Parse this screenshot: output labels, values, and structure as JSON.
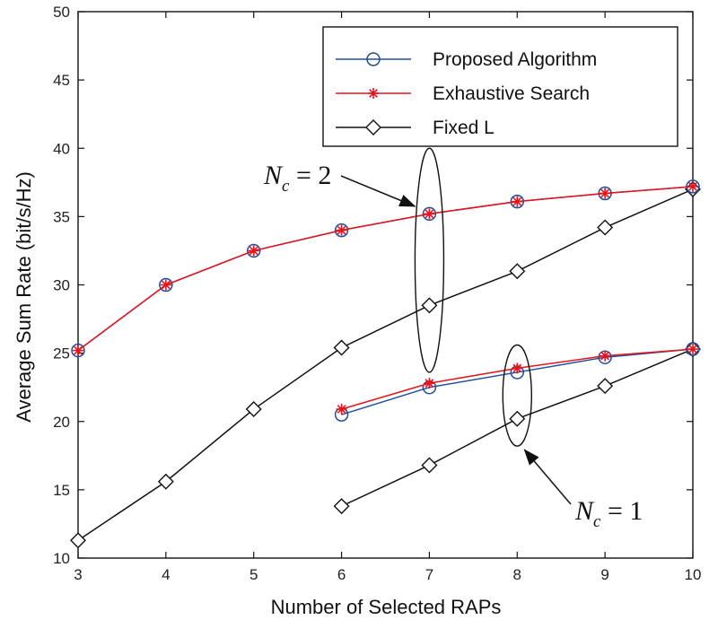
{
  "chart_data": {
    "type": "line",
    "xlabel": "Number of Selected RAPs",
    "ylabel": "Average Sum Rate (bit/s/Hz)",
    "xlim": [
      3,
      10
    ],
    "ylim": [
      10,
      50
    ],
    "xticks": [
      3,
      4,
      5,
      6,
      7,
      8,
      9,
      10
    ],
    "yticks": [
      10,
      15,
      20,
      25,
      30,
      35,
      40,
      45,
      50
    ],
    "grid": false,
    "legend_position": "top-right",
    "series": [
      {
        "name": "Proposed Algorithm",
        "color": "#1f4e9e",
        "marker": "circle",
        "groups": [
          {
            "x": [
              3,
              4,
              5,
              6,
              7,
              8,
              9,
              10
            ],
            "y": [
              25.2,
              30.0,
              32.5,
              34.0,
              35.2,
              36.1,
              36.7,
              37.2
            ]
          },
          {
            "x": [
              6,
              7,
              8,
              9,
              10
            ],
            "y": [
              20.5,
              22.5,
              23.6,
              24.7,
              25.3
            ]
          }
        ]
      },
      {
        "name": "Exhaustive Search",
        "color": "#e8141b",
        "marker": "asterisk",
        "groups": [
          {
            "x": [
              3,
              4,
              5,
              6,
              7,
              8,
              9,
              10
            ],
            "y": [
              25.2,
              30.0,
              32.5,
              34.0,
              35.2,
              36.1,
              36.7,
              37.2
            ]
          },
          {
            "x": [
              6,
              7,
              8,
              9,
              10
            ],
            "y": [
              20.9,
              22.8,
              23.9,
              24.8,
              25.3
            ]
          }
        ]
      },
      {
        "name": "Fixed L",
        "color": "#111111",
        "marker": "diamond",
        "groups": [
          {
            "x": [
              3,
              4,
              5,
              6,
              7,
              8,
              9,
              10
            ],
            "y": [
              11.3,
              15.6,
              20.9,
              25.4,
              28.5,
              31.0,
              34.2,
              37.0
            ]
          },
          {
            "x": [
              6,
              7,
              8,
              9,
              10
            ],
            "y": [
              13.8,
              16.8,
              20.2,
              22.6,
              25.3
            ]
          }
        ]
      }
    ],
    "annotations": [
      {
        "id": "nc2",
        "symbol": "N",
        "subscript": "c",
        "text": " = 2",
        "ellipse_center": [
          7,
          31.8
        ],
        "ellipse_span_y": [
          23.6,
          40.0
        ]
      },
      {
        "id": "nc1",
        "symbol": "N",
        "subscript": "c",
        "text": " = 1",
        "ellipse_center": [
          8,
          21.9
        ],
        "ellipse_span_y": [
          18.2,
          25.6
        ]
      }
    ]
  }
}
